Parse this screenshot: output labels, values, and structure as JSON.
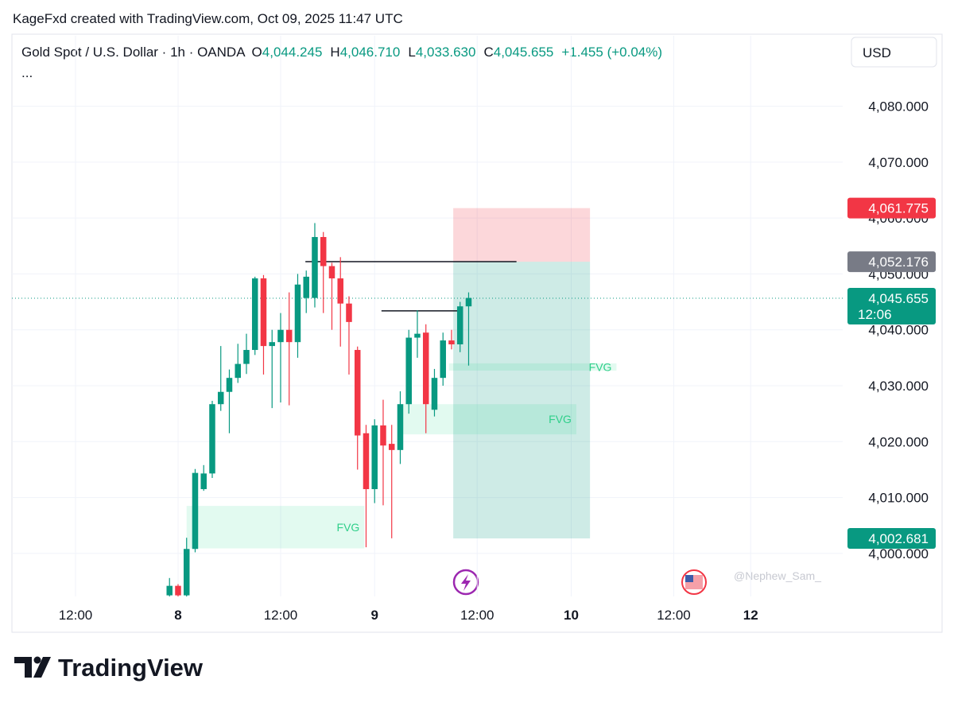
{
  "header": {
    "credit": "KageFxd created with TradingView.com, Oct 09, 2025 11:47 UTC",
    "symbol": "Gold Spot / U.S. Dollar · 1h · OANDA",
    "fields": [
      {
        "label": "O",
        "value": "4,044.245"
      },
      {
        "label": "H",
        "value": "4,046.710"
      },
      {
        "label": "L",
        "value": "4,033.630"
      },
      {
        "label": "C",
        "value": "4,045.655"
      }
    ],
    "change": "+1.455 (+0.04%)",
    "more": "...",
    "currency": "USD"
  },
  "watermark": "@Nephew_Sam_",
  "logo": "TradingView",
  "chart_data": {
    "type": "candlestick",
    "up_color": "#089981",
    "down_color": "#f23645",
    "x": [
      -1,
      0,
      1,
      2,
      3,
      4,
      5,
      6,
      7,
      8,
      9,
      10,
      11,
      12,
      13,
      14,
      15,
      16,
      17,
      18,
      19,
      20,
      21,
      22,
      23,
      24,
      25,
      26,
      27,
      28,
      29,
      30,
      31,
      32,
      33,
      34
    ],
    "open": [
      3992.5,
      3994.2,
      3992.5,
      4000.8,
      4011.5,
      4014.3,
      4026.7,
      4028.9,
      4031.4,
      4033.9,
      4036.4,
      4049.2,
      4037.1,
      4037.8,
      4040,
      4037.8,
      4045.7,
      4045.7,
      4056.6,
      4051.4,
      4049.2,
      4044.7,
      4036.4,
      4021.5,
      4011.5,
      4022.9,
      4019.6,
      4018.5,
      4026.7,
      4038.6,
      4039.5,
      4025.7,
      4031.4,
      4038.1,
      4037.4,
      4044.2
    ],
    "high": [
      3995.6,
      3994.5,
      4002.8,
      4015.1,
      4015.8,
      4027.3,
      4037.1,
      4032.9,
      4037.5,
      4039.3,
      4049.5,
      4049.8,
      4040,
      4043,
      4046.7,
      4050,
      4050.6,
      4059.1,
      4057.5,
      4052,
      4053,
      4046,
      4037,
      4023,
      4024,
      4027.5,
      4023,
      4029,
      4040,
      4043.5,
      4041,
      4033,
      4039.5,
      4040,
      4045,
      4046.7
    ],
    "low": [
      3992.3,
      3992.3,
      3992.3,
      4000.2,
      4011.2,
      4013.5,
      4025.5,
      4021.5,
      4030.5,
      4032.1,
      4035.5,
      4032,
      4026,
      4027,
      4026.5,
      4035,
      4043,
      4044,
      4043,
      4040,
      4037,
      4032,
      4015,
      4001.1,
      4009,
      4008.6,
      4002.7,
      4016,
      4025,
      4035,
      4021.5,
      4024.5,
      4030,
      4036.5,
      4036,
      4033.6
    ],
    "close": [
      3994.2,
      3992.5,
      4000.8,
      4014.4,
      4014.3,
      4026.7,
      4028.9,
      4031.4,
      4033.9,
      4036.4,
      4049.2,
      4037.1,
      4037.8,
      4040,
      4037.8,
      4048.1,
      4049.5,
      4056.6,
      4051.4,
      4049.2,
      4044.7,
      4041.4,
      4021.1,
      4011.5,
      4022.9,
      4019.3,
      4018.5,
      4026.7,
      4038.6,
      4039.3,
      4026.7,
      4031.4,
      4038.1,
      4037.4,
      4044.2,
      4045.7
    ],
    "xlim": [
      -19.44,
      77.77
    ],
    "ylim": [
      3992.3,
      4092.6
    ],
    "xticks": [
      {
        "value": -12,
        "label": "12:00"
      },
      {
        "value": 0,
        "label": "8"
      },
      {
        "value": 12,
        "label": "12:00"
      },
      {
        "value": 23,
        "label": "9"
      },
      {
        "value": 35,
        "label": "12:00"
      },
      {
        "value": 46,
        "label": "10"
      },
      {
        "value": 58,
        "label": "12:00"
      },
      {
        "value": 67,
        "label": "12"
      }
    ],
    "yticks": [
      {
        "value": 4000,
        "label": "4,000.000"
      },
      {
        "value": 4010,
        "label": "4,010.000"
      },
      {
        "value": 4020,
        "label": "4,020.000"
      },
      {
        "value": 4030,
        "label": "4,030.000"
      },
      {
        "value": 4040,
        "label": "4,040.000"
      },
      {
        "value": 4050,
        "label": "4,050.000"
      },
      {
        "value": 4060,
        "label": "4,060.000"
      },
      {
        "value": 4070,
        "label": "4,070.000"
      },
      {
        "value": 4080,
        "label": "4,080.000"
      }
    ],
    "position": {
      "x": [
        32.2,
        48.2
      ],
      "stop": 4061.775,
      "entry": 4052.176,
      "target": 4002.681
    },
    "zones": [
      {
        "label": "FVG",
        "x": [
          1,
          21.8
        ],
        "y": [
          4000.9,
          4008.5
        ]
      },
      {
        "label": "FVG",
        "x": [
          25.8,
          46.6
        ],
        "y": [
          4021.3,
          4026.7
        ]
      },
      {
        "label": "FVG",
        "x": [
          31.7,
          51.3
        ],
        "y": [
          4032.7,
          4034
        ]
      }
    ],
    "lines": [
      {
        "x": [
          14.9,
          39.6
        ],
        "y": 4052.2
      },
      {
        "x": [
          23.8,
          32.7
        ],
        "y": 4043.4
      }
    ],
    "price_labels": [
      {
        "value": 4061.775,
        "label": "4,061.775",
        "color": "#f23645"
      },
      {
        "value": 4052.176,
        "label": "4,052.176",
        "color": "#787b86"
      },
      {
        "value": 4045.655,
        "label": "4,045.655",
        "color": "#089981",
        "countdown": "12:06"
      },
      {
        "value": 4002.681,
        "label": "4,002.681",
        "color": "#089981"
      }
    ]
  }
}
